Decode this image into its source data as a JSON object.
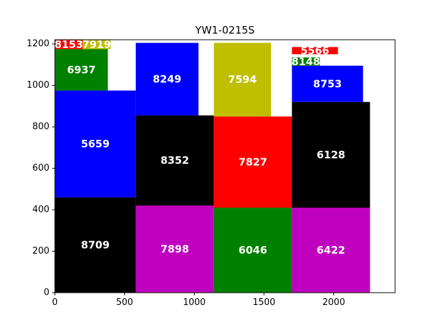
{
  "chart_data": {
    "type": "treemap",
    "title": "YW1-0215S",
    "xlim": [
      0,
      2440
    ],
    "ylim": [
      0,
      1220
    ],
    "x_ticks": [
      0,
      500,
      1000,
      1500,
      2000
    ],
    "y_ticks": [
      0,
      200,
      400,
      600,
      800,
      1000,
      1200
    ],
    "colors": {
      "black": "#000000",
      "magenta": "#bf00bf",
      "green": "#008000",
      "blue": "#0000ff",
      "red": "#ff0000",
      "olive": "#bfbf00"
    },
    "blocks": [
      {
        "label": "8709",
        "x": 0,
        "y": 0,
        "w": 580,
        "h": 460,
        "color": "black"
      },
      {
        "label": "5659",
        "x": 0,
        "y": 460,
        "w": 580,
        "h": 515,
        "color": "blue"
      },
      {
        "label": "6937",
        "x": 0,
        "y": 975,
        "w": 380,
        "h": 200,
        "color": "green"
      },
      {
        "label": "8153",
        "x": 0,
        "y": 1175,
        "w": 200,
        "h": 45,
        "color": "red"
      },
      {
        "label": "7919",
        "x": 200,
        "y": 1175,
        "w": 200,
        "h": 45,
        "color": "olive"
      },
      {
        "label": "7898",
        "x": 580,
        "y": 0,
        "w": 560,
        "h": 420,
        "color": "magenta"
      },
      {
        "label": "8352",
        "x": 580,
        "y": 420,
        "w": 560,
        "h": 435,
        "color": "black"
      },
      {
        "label": "8249",
        "x": 580,
        "y": 855,
        "w": 450,
        "h": 350,
        "color": "blue"
      },
      {
        "label": "6046",
        "x": 1140,
        "y": 0,
        "w": 560,
        "h": 410,
        "color": "green"
      },
      {
        "label": "7827",
        "x": 1140,
        "y": 410,
        "w": 560,
        "h": 440,
        "color": "red"
      },
      {
        "label": "7594",
        "x": 1140,
        "y": 850,
        "w": 410,
        "h": 355,
        "color": "olive"
      },
      {
        "label": "6422",
        "x": 1700,
        "y": 0,
        "w": 560,
        "h": 410,
        "color": "magenta"
      },
      {
        "label": "6128",
        "x": 1700,
        "y": 410,
        "w": 560,
        "h": 510,
        "color": "black"
      },
      {
        "label": "8753",
        "x": 1700,
        "y": 920,
        "w": 510,
        "h": 175,
        "color": "blue"
      },
      {
        "label": "8148",
        "x": 1700,
        "y": 1095,
        "w": 200,
        "h": 40,
        "color": "green"
      },
      {
        "label": "5566",
        "x": 1700,
        "y": 1150,
        "w": 330,
        "h": 35,
        "color": "red"
      }
    ]
  }
}
